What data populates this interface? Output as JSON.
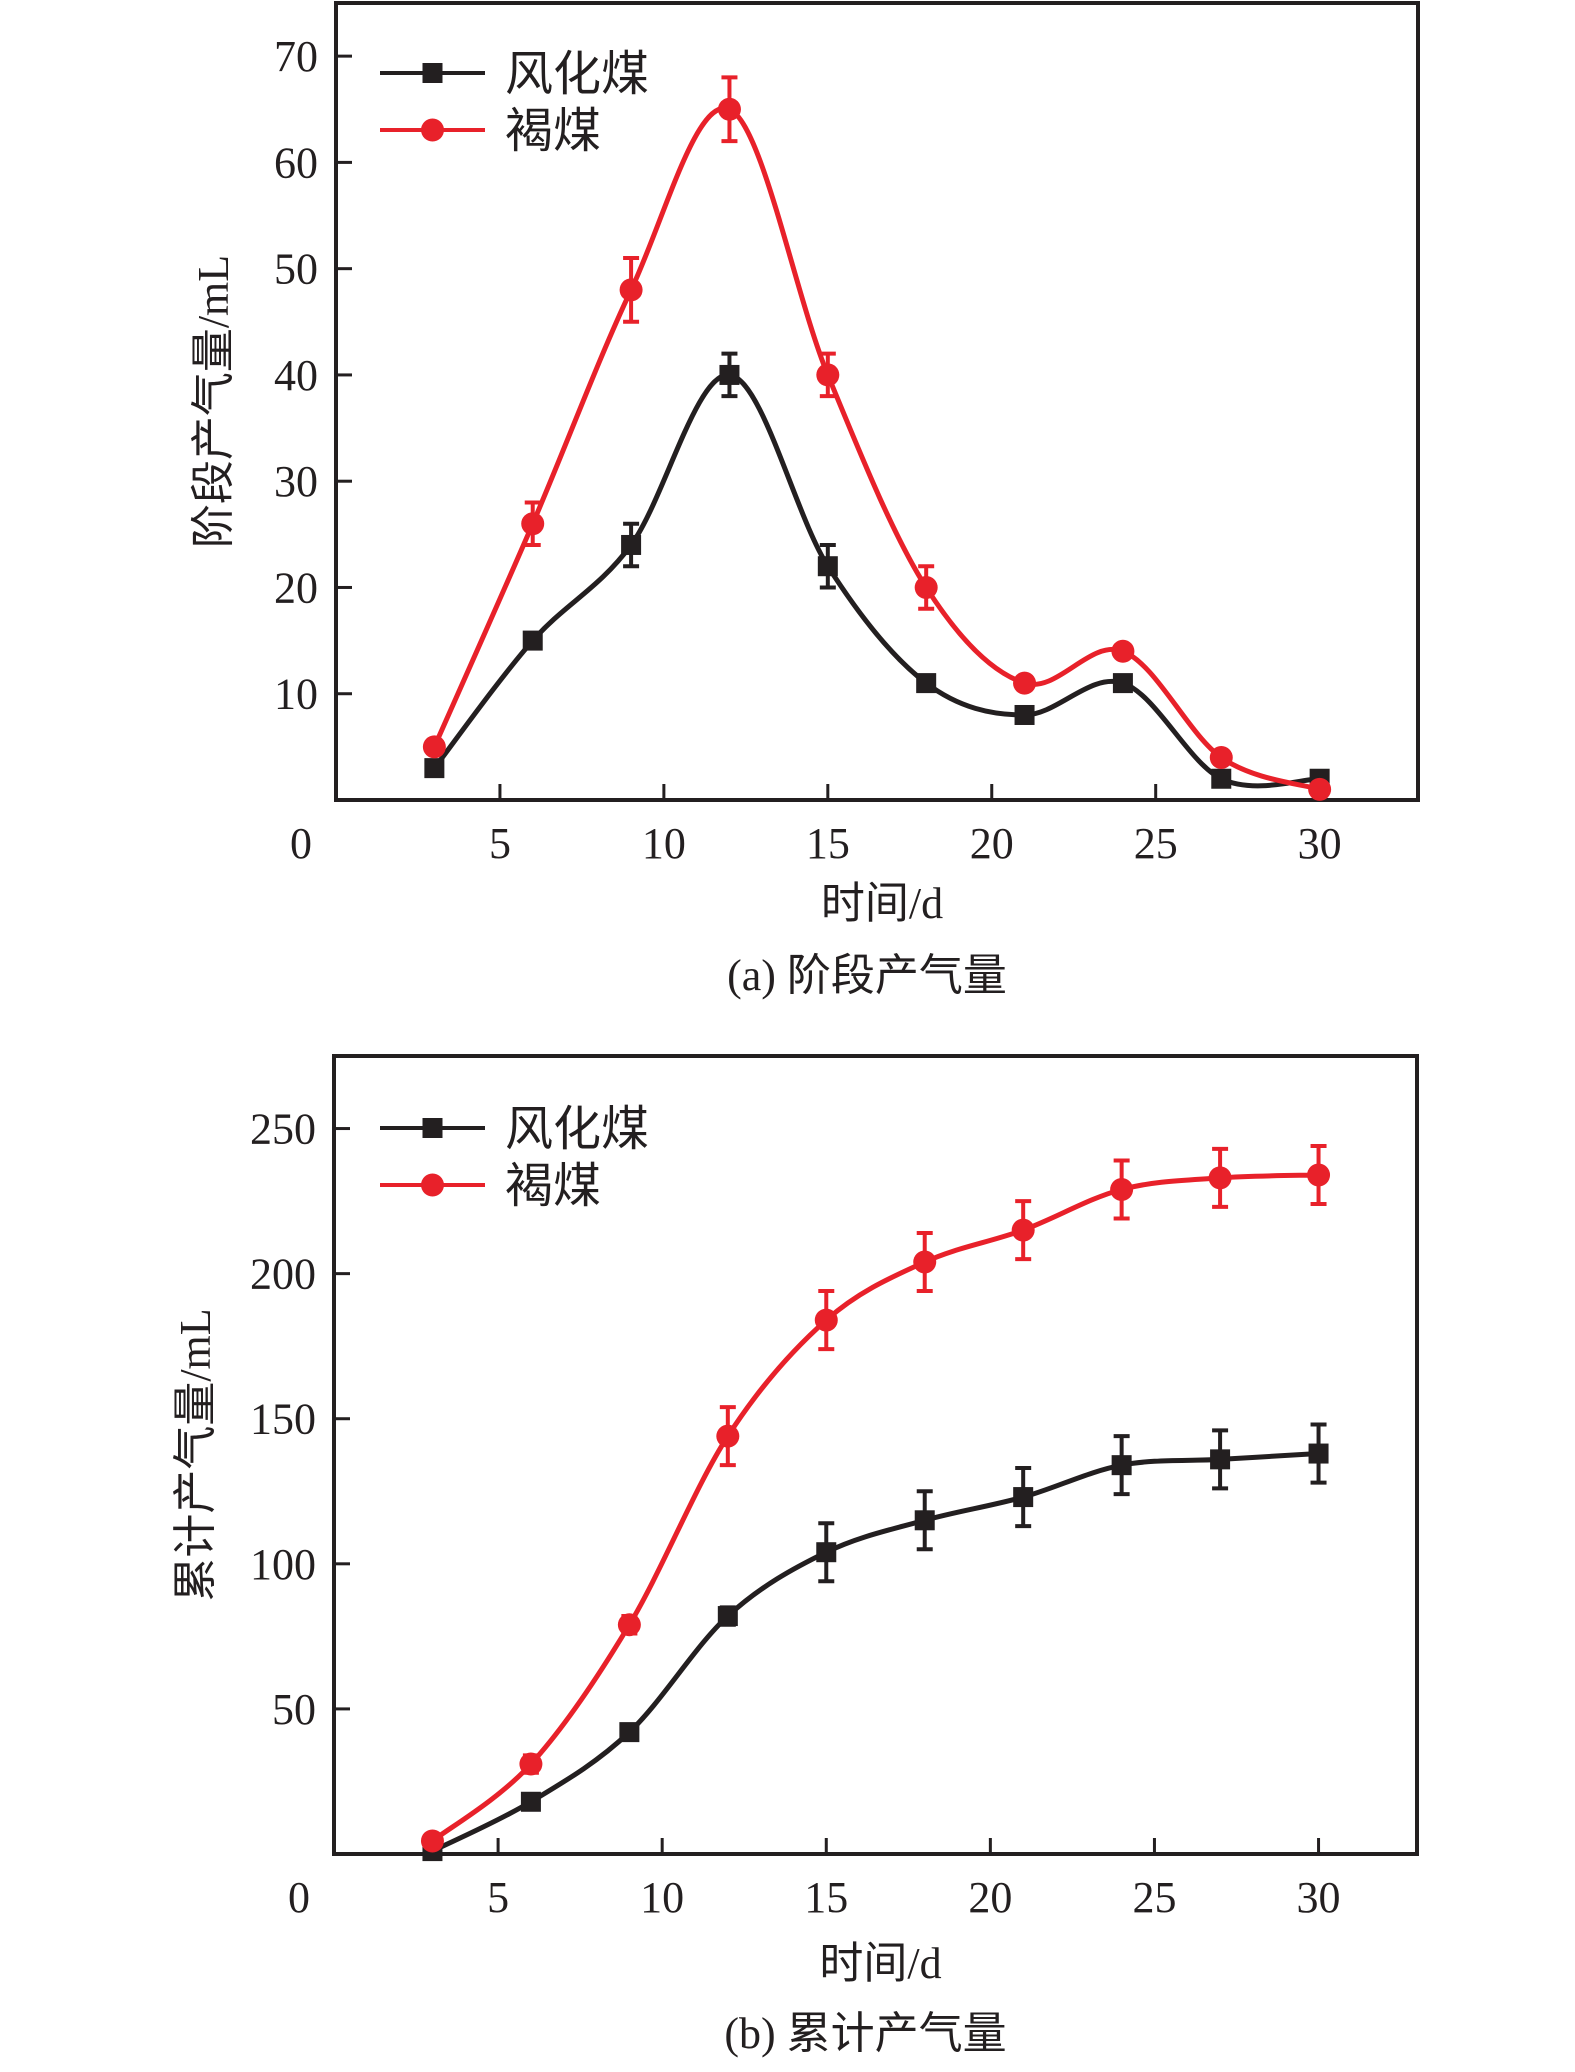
{
  "colors": {
    "series_black": "#231F20",
    "series_red": "#E8212A",
    "axis": "#231F20"
  },
  "chart_data": [
    {
      "id": "a",
      "type": "line",
      "caption": "(a) 阶段产气量",
      "title": "",
      "xlabel": "时间/d",
      "ylabel": "阶段产气量/mL",
      "xlim": [
        0,
        33
      ],
      "ylim": [
        0,
        75
      ],
      "xticks": [
        0,
        5,
        10,
        15,
        20,
        25,
        30
      ],
      "yticks": [
        10,
        20,
        30,
        40,
        50,
        60,
        70
      ],
      "x_tick_labels": [
        "0",
        "5",
        "10",
        "15",
        "20",
        "25",
        "30"
      ],
      "y_tick_labels": [
        "10",
        "20",
        "30",
        "40",
        "50",
        "60",
        "70"
      ],
      "grid": false,
      "legend_position": "top-left",
      "x": [
        3,
        6,
        9,
        12,
        15,
        18,
        21,
        24,
        27,
        30
      ],
      "series": [
        {
          "name": "风化煤",
          "marker": "square",
          "color_key": "series_black",
          "values": [
            3,
            15,
            24,
            40,
            22,
            11,
            8,
            11,
            2,
            2
          ],
          "errors": [
            0,
            0,
            2,
            2,
            2,
            0,
            0,
            0,
            0,
            0
          ]
        },
        {
          "name": "褐煤",
          "marker": "circle",
          "color_key": "series_red",
          "values": [
            5,
            26,
            48,
            65,
            40,
            20,
            11,
            14,
            4,
            1
          ],
          "errors": [
            0,
            2,
            3,
            3,
            2,
            2,
            0,
            0,
            0,
            0
          ]
        }
      ]
    },
    {
      "id": "b",
      "type": "line",
      "caption": "(b) 累计产气量",
      "title": "",
      "xlabel": "时间/d",
      "ylabel": "累计产气量/mL",
      "xlim": [
        0,
        33
      ],
      "ylim": [
        0,
        275
      ],
      "xticks": [
        0,
        5,
        10,
        15,
        20,
        25,
        30
      ],
      "yticks": [
        50,
        100,
        150,
        200,
        250
      ],
      "x_tick_labels": [
        "0",
        "5",
        "10",
        "15",
        "20",
        "25",
        "30"
      ],
      "y_tick_labels": [
        "50",
        "100",
        "150",
        "200",
        "250"
      ],
      "grid": false,
      "legend_position": "top-left",
      "x": [
        3,
        6,
        9,
        12,
        15,
        18,
        21,
        24,
        27,
        30
      ],
      "series": [
        {
          "name": "风化煤",
          "marker": "square",
          "color_key": "series_black",
          "values": [
            1,
            18,
            42,
            82,
            104,
            115,
            123,
            134,
            136,
            138
          ],
          "errors": [
            0,
            0,
            0,
            3,
            10,
            10,
            10,
            10,
            10,
            10
          ]
        },
        {
          "name": "褐煤",
          "marker": "circle",
          "color_key": "series_red",
          "values": [
            4.5,
            31,
            79,
            144,
            184,
            204,
            215,
            229,
            233,
            234
          ],
          "errors": [
            0,
            3,
            3,
            10,
            10,
            10,
            10,
            10,
            10,
            10
          ]
        }
      ]
    }
  ]
}
